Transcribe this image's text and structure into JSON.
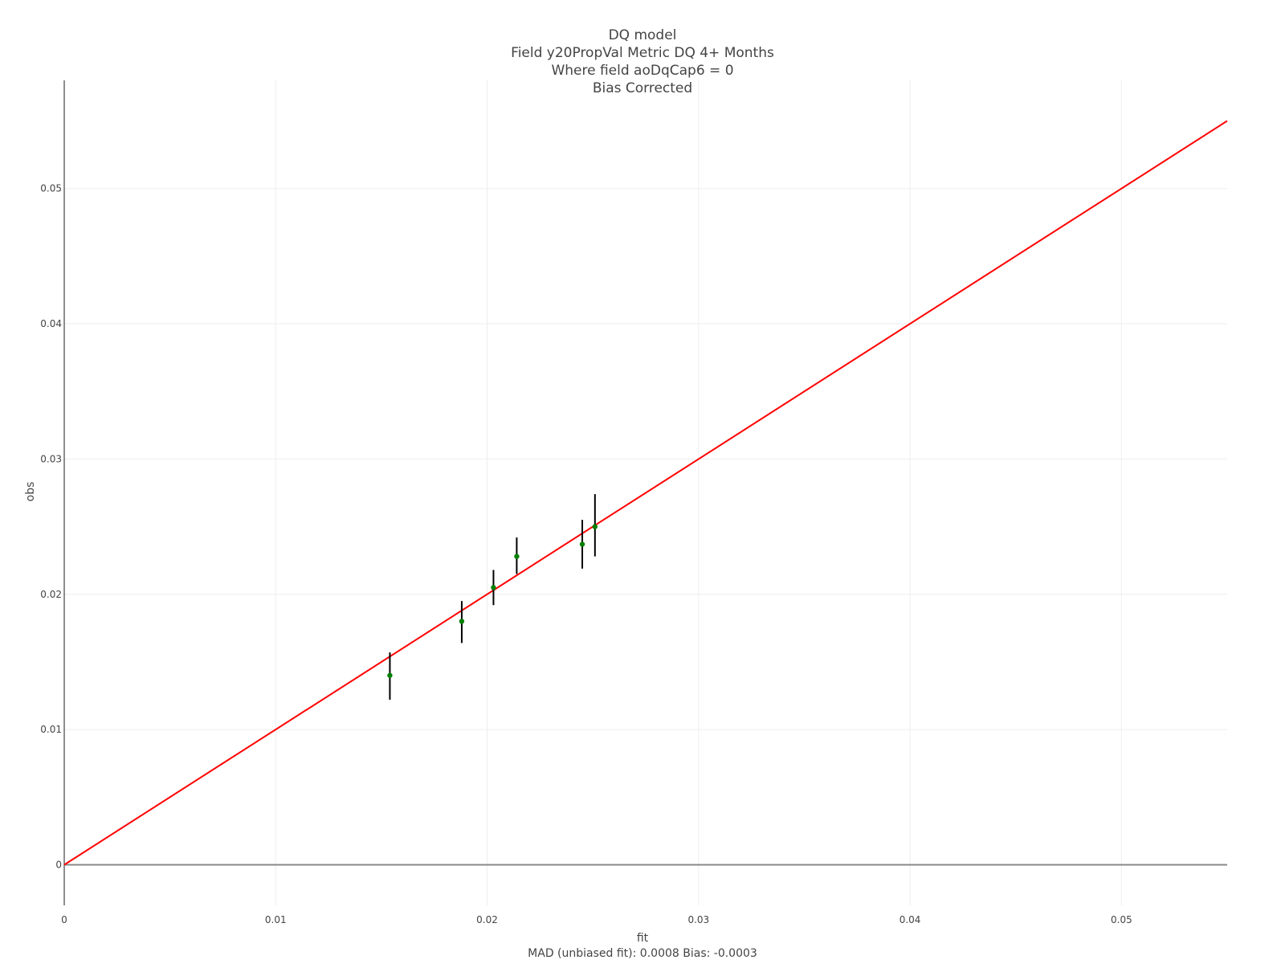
{
  "chart_data": {
    "type": "scatter",
    "title_lines": [
      "DQ model",
      "Field y20PropVal Metric DQ 4+ Months",
      "Where field aoDqCap6 = 0",
      "Bias Corrected"
    ],
    "xlabel": "fit",
    "ylabel": "obs",
    "footer": "MAD (unbiased fit): 0.0008 Bias: -0.0003",
    "xlim": [
      0,
      0.055
    ],
    "ylim": [
      -0.003,
      0.058
    ],
    "x_ticks": [
      {
        "value": 0,
        "label": "0"
      },
      {
        "value": 0.01,
        "label": "0.01"
      },
      {
        "value": 0.02,
        "label": "0.02"
      },
      {
        "value": 0.03,
        "label": "0.03"
      },
      {
        "value": 0.04,
        "label": "0.04"
      },
      {
        "value": 0.05,
        "label": "0.05"
      }
    ],
    "y_ticks": [
      {
        "value": 0,
        "label": "0"
      },
      {
        "value": 0.01,
        "label": "0.01"
      },
      {
        "value": 0.02,
        "label": "0.02"
      },
      {
        "value": 0.03,
        "label": "0.03"
      },
      {
        "value": 0.04,
        "label": "0.04"
      },
      {
        "value": 0.05,
        "label": "0.05"
      }
    ],
    "grid": true,
    "points": [
      {
        "x": 0.0154,
        "y": 0.014,
        "err_low": 0.0122,
        "err_high": 0.0157
      },
      {
        "x": 0.0188,
        "y": 0.018,
        "err_low": 0.0164,
        "err_high": 0.0195
      },
      {
        "x": 0.0203,
        "y": 0.0205,
        "err_low": 0.0192,
        "err_high": 0.0218
      },
      {
        "x": 0.0214,
        "y": 0.0228,
        "err_low": 0.0215,
        "err_high": 0.0242
      },
      {
        "x": 0.0245,
        "y": 0.0237,
        "err_low": 0.0219,
        "err_high": 0.0255
      },
      {
        "x": 0.0251,
        "y": 0.025,
        "err_low": 0.0228,
        "err_high": 0.0274
      }
    ],
    "reference_line": {
      "from": [
        0,
        0
      ],
      "to": [
        0.055,
        0.055
      ],
      "color": "#ff0000"
    },
    "point_color": "#008000",
    "errorbar_color": "#000000",
    "grid_color": "#eeeeee",
    "axis_color": "#444444"
  }
}
